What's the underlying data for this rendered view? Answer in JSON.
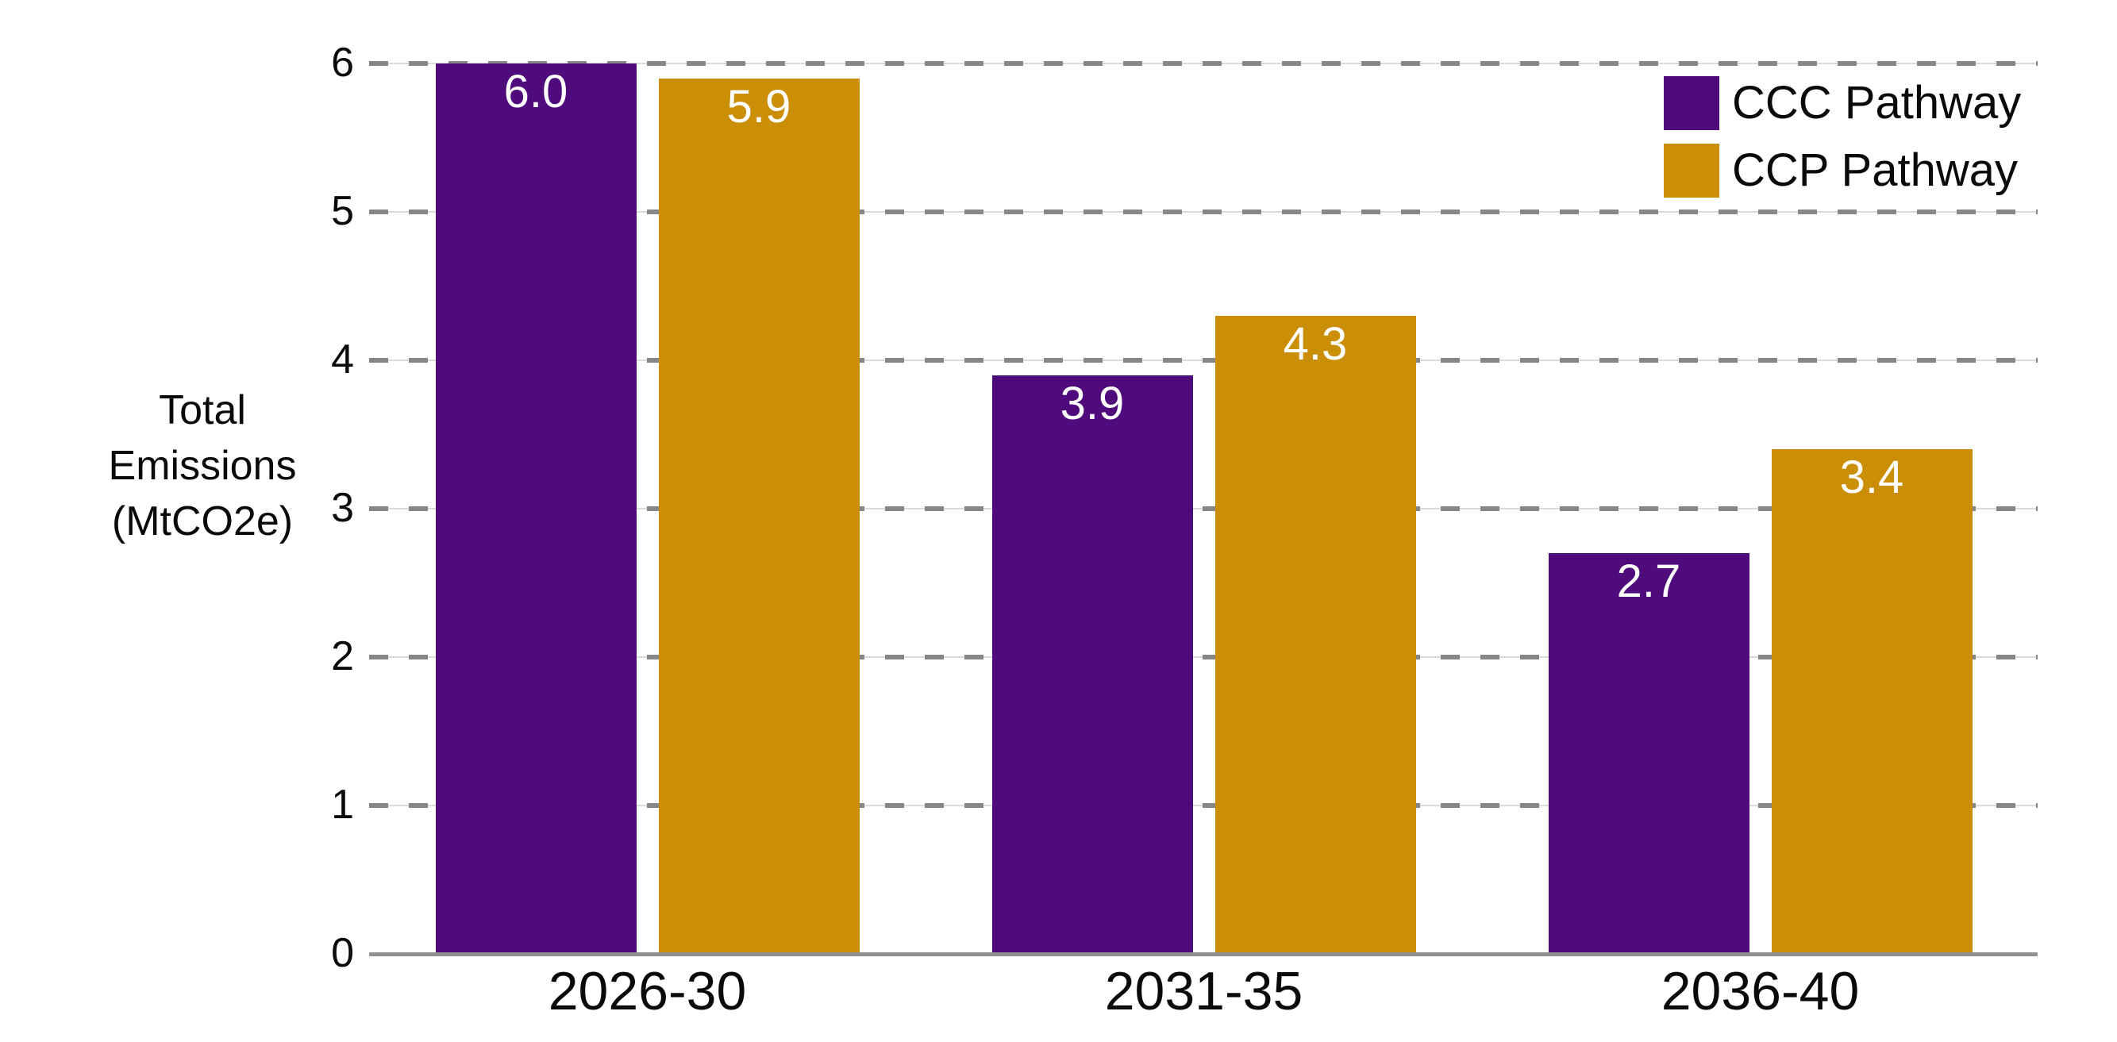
{
  "background": "#ffffff",
  "chart_data": {
    "type": "bar",
    "title": "",
    "categories": [
      "2026-30",
      "2031-35",
      "2036-40"
    ],
    "series": [
      {
        "name": "CCC Pathway",
        "color": "#4F0B7B",
        "values": [
          6.0,
          3.9,
          2.7
        ],
        "value_labels": [
          "6.0",
          "3.9",
          "2.7"
        ]
      },
      {
        "name": "CCP Pathway",
        "color": "#CB8E07",
        "values": [
          5.9,
          4.3,
          3.4
        ],
        "value_labels": [
          "5.9",
          "4.3",
          "3.4"
        ]
      }
    ],
    "ylabel_lines": [
      "Total",
      "Emissions",
      "(MtCO2e)"
    ],
    "y_tick_labels": [
      "0",
      "1",
      "2",
      "3",
      "4",
      "5",
      "6"
    ],
    "ylim": [
      0,
      6
    ],
    "grid": "horizontal-dashed",
    "legend_position": "top-right",
    "bar_label_color": "#ffffff",
    "colors": {
      "grid_dash": "#868686",
      "grid_faint": "#dcdcdc",
      "axis_line": "#919191",
      "text": "#0a0a0a"
    }
  }
}
